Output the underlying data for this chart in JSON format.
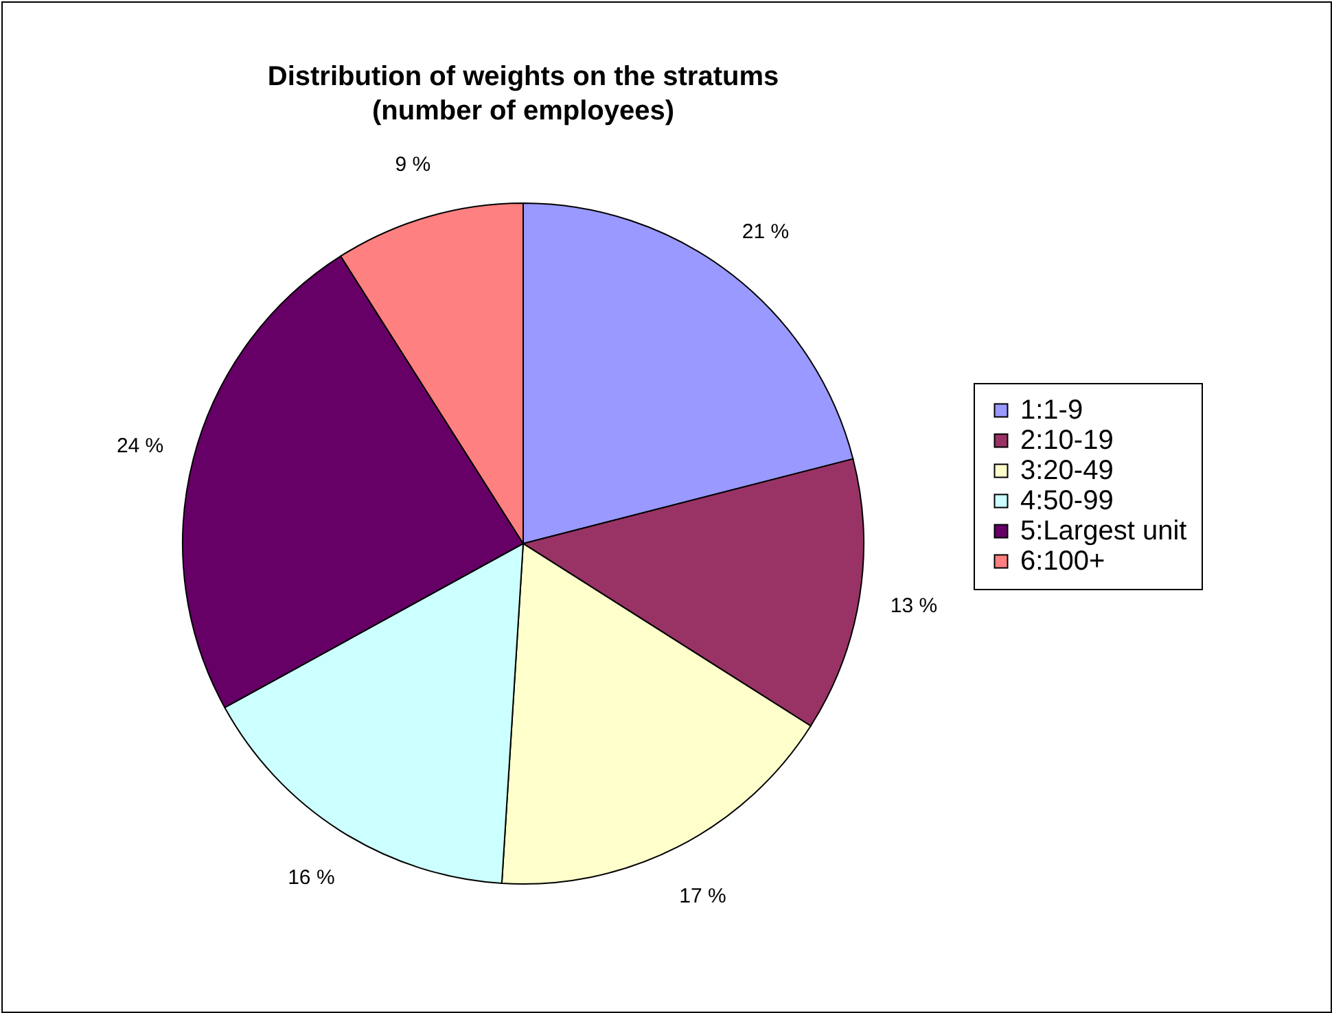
{
  "chart_data": {
    "type": "pie",
    "title": "Distribution of weights on the stratums\n(number of employees)",
    "categories": [
      "1:1-9",
      "2:10-19",
      "3:20-49",
      "4:50-99",
      "5:Largest unit",
      "6:100+"
    ],
    "values": [
      21,
      13,
      17,
      16,
      24,
      9
    ],
    "colors": [
      "#9999ff",
      "#993366",
      "#ffffcc",
      "#ccffff",
      "#660066",
      "#ff8080"
    ],
    "value_labels": [
      "21 %",
      "13 %",
      "17 %",
      "16 %",
      "24 %",
      "9 %"
    ],
    "legend": "right"
  }
}
